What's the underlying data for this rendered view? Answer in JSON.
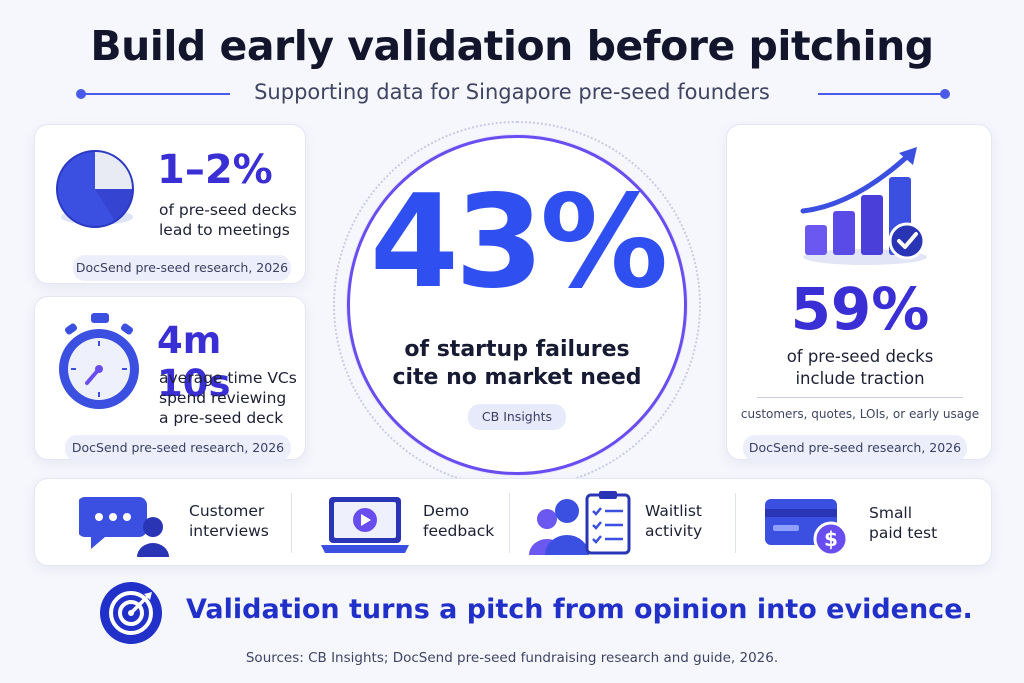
{
  "header": {
    "title": "Build early validation before pitching",
    "subtitle": "Supporting data for Singapore pre-seed founders"
  },
  "stats": {
    "meetings": {
      "value": "1–2%",
      "line1": "of pre-seed decks",
      "line2": "lead to meetings",
      "source": "DocSend pre-seed research, 2026",
      "icon": "pie-chart-icon"
    },
    "review_time": {
      "value": "4m 10s",
      "line1": "average time VCs",
      "line2": "spend reviewing",
      "line3": "a pre-seed deck",
      "source": "DocSend pre-seed research, 2026",
      "icon": "stopwatch-icon"
    },
    "failures": {
      "value": "43%",
      "line1": "of startup failures",
      "line2": "cite no market need",
      "source": "CB Insights"
    },
    "traction": {
      "value": "59%",
      "line1": "of pre-seed decks",
      "line2": "include traction",
      "detail": "customers, quotes, LOIs, or early usage",
      "source": "DocSend pre-seed research, 2026",
      "icon": "growth-bar-chart-icon"
    }
  },
  "methods": [
    {
      "line1": "Customer",
      "line2": "interviews",
      "icon": "chat-bubble-person-icon"
    },
    {
      "line1": "Demo",
      "line2": "feedback",
      "icon": "laptop-play-icon"
    },
    {
      "line1": "Waitlist",
      "line2": "activity",
      "icon": "people-checklist-icon"
    },
    {
      "line1": "Small",
      "line2": "paid test",
      "icon": "credit-card-dollar-icon"
    }
  ],
  "conclusion": {
    "text": "Validation turns a pitch from opinion into evidence.",
    "icon": "target-arrow-icon"
  },
  "footer": {
    "sources": "Sources: CB Insights; DocSend pre-seed fundraising research and guide, 2026."
  },
  "colors": {
    "accent": "#2f4ff0",
    "purple": "#3a2fd4",
    "navy": "#2130c9",
    "background": "#f6f7fc"
  }
}
